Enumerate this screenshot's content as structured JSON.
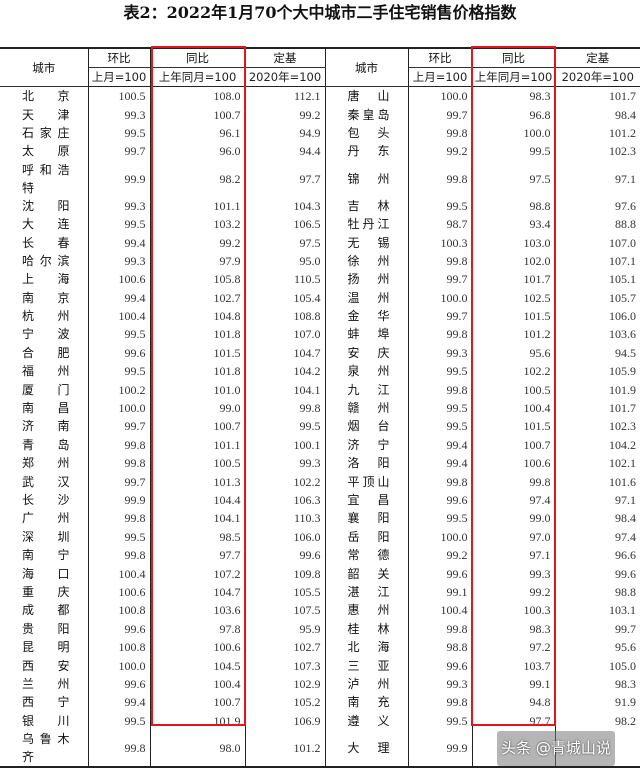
{
  "title": "表2：2022年1月70个大中城市二手住宅销售价格指数",
  "header": {
    "city": "城市",
    "mom": "环比",
    "mom_base": "上月=100",
    "yoy": "同比",
    "yoy_base": "上年同月=100",
    "fixed": "定基",
    "fixed_base": "2020年=100"
  },
  "highlight_color": "#e8141c",
  "left_rows": [
    [
      "北京",
      "100.5",
      "108.0",
      "112.1"
    ],
    [
      "天津",
      "99.3",
      "100.7",
      "99.2"
    ],
    [
      "石家庄",
      "99.5",
      "96.1",
      "94.9"
    ],
    [
      "太原",
      "99.7",
      "96.0",
      "94.4"
    ],
    [
      "呼和浩特",
      "99.9",
      "98.2",
      "97.7"
    ],
    [
      "沈阳",
      "99.3",
      "101.1",
      "104.3"
    ],
    [
      "大连",
      "99.5",
      "103.2",
      "106.5"
    ],
    [
      "长春",
      "99.4",
      "99.2",
      "97.5"
    ],
    [
      "哈尔滨",
      "99.3",
      "97.9",
      "95.0"
    ],
    [
      "上海",
      "100.6",
      "105.8",
      "110.5"
    ],
    [
      "南京",
      "99.4",
      "102.7",
      "105.4"
    ],
    [
      "杭州",
      "100.4",
      "104.8",
      "108.8"
    ],
    [
      "宁波",
      "99.5",
      "101.8",
      "107.0"
    ],
    [
      "合肥",
      "99.6",
      "101.5",
      "104.7"
    ],
    [
      "福州",
      "99.5",
      "101.8",
      "104.2"
    ],
    [
      "厦门",
      "100.2",
      "101.0",
      "104.1"
    ],
    [
      "南昌",
      "100.0",
      "99.0",
      "99.8"
    ],
    [
      "济南",
      "99.7",
      "100.7",
      "99.5"
    ],
    [
      "青岛",
      "99.8",
      "101.1",
      "100.1"
    ],
    [
      "郑州",
      "99.8",
      "100.5",
      "99.3"
    ],
    [
      "武汉",
      "99.7",
      "101.3",
      "102.2"
    ],
    [
      "长沙",
      "99.9",
      "104.4",
      "106.3"
    ],
    [
      "广州",
      "99.8",
      "104.1",
      "110.3"
    ],
    [
      "深圳",
      "99.5",
      "98.5",
      "106.0"
    ],
    [
      "南宁",
      "99.8",
      "97.7",
      "99.6"
    ],
    [
      "海口",
      "100.4",
      "107.2",
      "109.8"
    ],
    [
      "重庆",
      "100.6",
      "104.7",
      "105.5"
    ],
    [
      "成都",
      "100.8",
      "103.6",
      "107.5"
    ],
    [
      "贵阳",
      "99.6",
      "97.8",
      "95.9"
    ],
    [
      "昆明",
      "100.8",
      "100.6",
      "102.7"
    ],
    [
      "西安",
      "100.0",
      "104.5",
      "107.3"
    ],
    [
      "兰州",
      "99.6",
      "100.4",
      "102.9"
    ],
    [
      "西宁",
      "99.4",
      "100.7",
      "105.2"
    ],
    [
      "银川",
      "99.5",
      "101.9",
      "106.9"
    ],
    [
      "乌鲁木齐",
      "99.8",
      "98.0",
      "101.2"
    ]
  ],
  "right_rows": [
    [
      "唐山",
      "100.0",
      "98.3",
      "101.7"
    ],
    [
      "秦皇岛",
      "99.7",
      "96.8",
      "98.4"
    ],
    [
      "包头",
      "99.8",
      "100.0",
      "101.2"
    ],
    [
      "丹东",
      "99.2",
      "99.5",
      "102.3"
    ],
    [
      "锦州",
      "99.8",
      "97.5",
      "97.1"
    ],
    [
      "吉林",
      "99.5",
      "98.8",
      "97.6"
    ],
    [
      "牡丹江",
      "98.7",
      "93.4",
      "88.8"
    ],
    [
      "无锡",
      "100.3",
      "103.0",
      "107.0"
    ],
    [
      "徐州",
      "99.8",
      "102.0",
      "107.1"
    ],
    [
      "扬州",
      "99.7",
      "101.7",
      "105.1"
    ],
    [
      "温州",
      "100.0",
      "102.5",
      "105.7"
    ],
    [
      "金华",
      "99.7",
      "101.5",
      "106.0"
    ],
    [
      "蚌埠",
      "99.8",
      "101.2",
      "103.6"
    ],
    [
      "安庆",
      "99.3",
      "95.6",
      "94.5"
    ],
    [
      "泉州",
      "99.5",
      "102.2",
      "105.9"
    ],
    [
      "九江",
      "99.8",
      "100.5",
      "101.9"
    ],
    [
      "赣州",
      "99.5",
      "100.4",
      "101.7"
    ],
    [
      "烟台",
      "99.5",
      "101.5",
      "102.3"
    ],
    [
      "济宁",
      "99.4",
      "100.7",
      "104.2"
    ],
    [
      "洛阳",
      "99.4",
      "100.6",
      "102.1"
    ],
    [
      "平顶山",
      "99.8",
      "99.8",
      "101.6"
    ],
    [
      "宜昌",
      "99.6",
      "97.4",
      "97.1"
    ],
    [
      "襄阳",
      "99.5",
      "99.0",
      "98.4"
    ],
    [
      "岳阳",
      "100.0",
      "97.0",
      "97.4"
    ],
    [
      "常德",
      "99.2",
      "97.1",
      "96.6"
    ],
    [
      "韶关",
      "99.6",
      "99.3",
      "99.6"
    ],
    [
      "湛江",
      "99.1",
      "99.2",
      "98.8"
    ],
    [
      "惠州",
      "100.4",
      "100.3",
      "103.1"
    ],
    [
      "桂林",
      "99.8",
      "98.3",
      "99.7"
    ],
    [
      "北海",
      "98.8",
      "97.2",
      "95.6"
    ],
    [
      "三亚",
      "99.6",
      "103.7",
      "105.0"
    ],
    [
      "泸州",
      "99.3",
      "99.1",
      "98.3"
    ],
    [
      "南充",
      "99.8",
      "94.8",
      "91.9"
    ],
    [
      "遵义",
      "99.5",
      "97.7",
      "98.2"
    ],
    [
      "大理",
      "99.9",
      "",
      ""
    ]
  ],
  "watermark": "头条 @青城山说"
}
